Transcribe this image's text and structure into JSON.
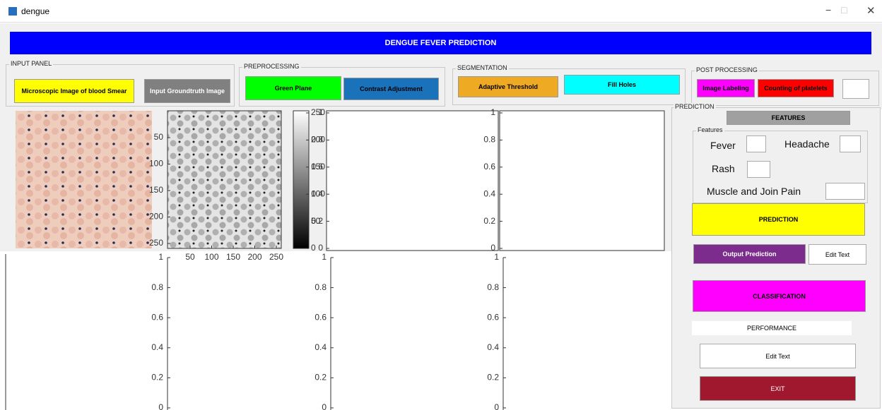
{
  "window": {
    "title": "dengue"
  },
  "banner": "DENGUE FEVER PREDICTION",
  "input_panel": {
    "title": "INPUT PANEL",
    "buttons": [
      "Microscopic Image of blood Smear",
      "Input Groundtruth Image"
    ]
  },
  "preprocessing": {
    "title": "PREPROCESSING",
    "buttons": [
      "Green Plane",
      "Contrast Adjustment"
    ]
  },
  "segmentation": {
    "title": "SEGMENTATION",
    "buttons": [
      "Adaptive Threshold",
      "Fill Holes"
    ]
  },
  "post_processing": {
    "title": "POST PROCESSING",
    "buttons": [
      "Image Labeling",
      "Counting of platelets"
    ]
  },
  "prediction": {
    "title": "PREDICTION",
    "features_button": "FEATURES",
    "features": {
      "title": "Features",
      "fields": [
        "Fever",
        "Headache",
        "Rash",
        "Muscle and Join Pain"
      ]
    },
    "predict_button": "PREDICTION",
    "output_button": "Output Prediction",
    "output_text": "Edit Text",
    "classify_button": "CLASSIFICATION",
    "performance": "PERFORMANCE",
    "performance_text": "Edit Text",
    "exit_button": "EXIT"
  },
  "axes": [
    {
      "yticks": [
        50,
        100,
        150,
        200,
        250
      ],
      "xticks": [
        50,
        100,
        150,
        200,
        250
      ]
    },
    {
      "yticks": [
        0,
        50,
        100,
        150,
        200,
        250
      ]
    },
    {
      "yticks": [
        0,
        0.2,
        0.4,
        0.6,
        0.8,
        1
      ]
    },
    {
      "yticks": [
        0,
        0.2,
        0.4,
        0.6,
        0.8,
        1
      ]
    },
    {
      "yticks": [
        0,
        0.2,
        0.4,
        0.6,
        0.8,
        1
      ]
    },
    {
      "yticks": [
        0,
        0.2,
        0.4,
        0.6,
        0.8,
        1
      ]
    },
    {
      "yticks": [
        0,
        0.2,
        0.4,
        0.6,
        0.8,
        1
      ]
    }
  ]
}
